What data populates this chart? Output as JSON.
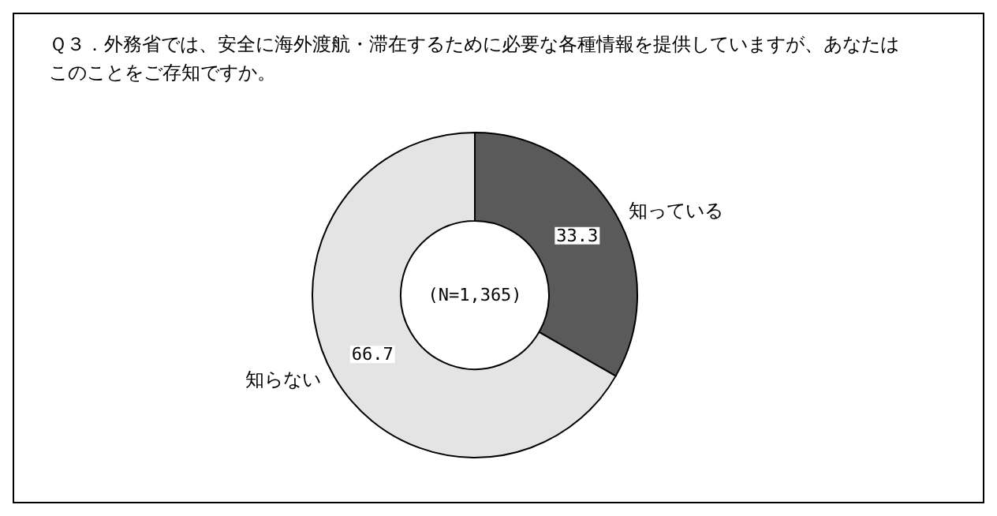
{
  "chart_data": {
    "type": "donut",
    "title": "Ｑ３．外務省では、安全に海外渡航・滞在するために必要な各種情報を提供していますが、あなたはこのことをご存知ですか。",
    "categories": [
      "知っている",
      "知らない"
    ],
    "values": [
      33.3,
      66.7
    ],
    "colors": [
      "#5a5a5a",
      "#e4e4e4"
    ],
    "data_labels": true,
    "annotations": [
      "(N=1,365)"
    ]
  }
}
